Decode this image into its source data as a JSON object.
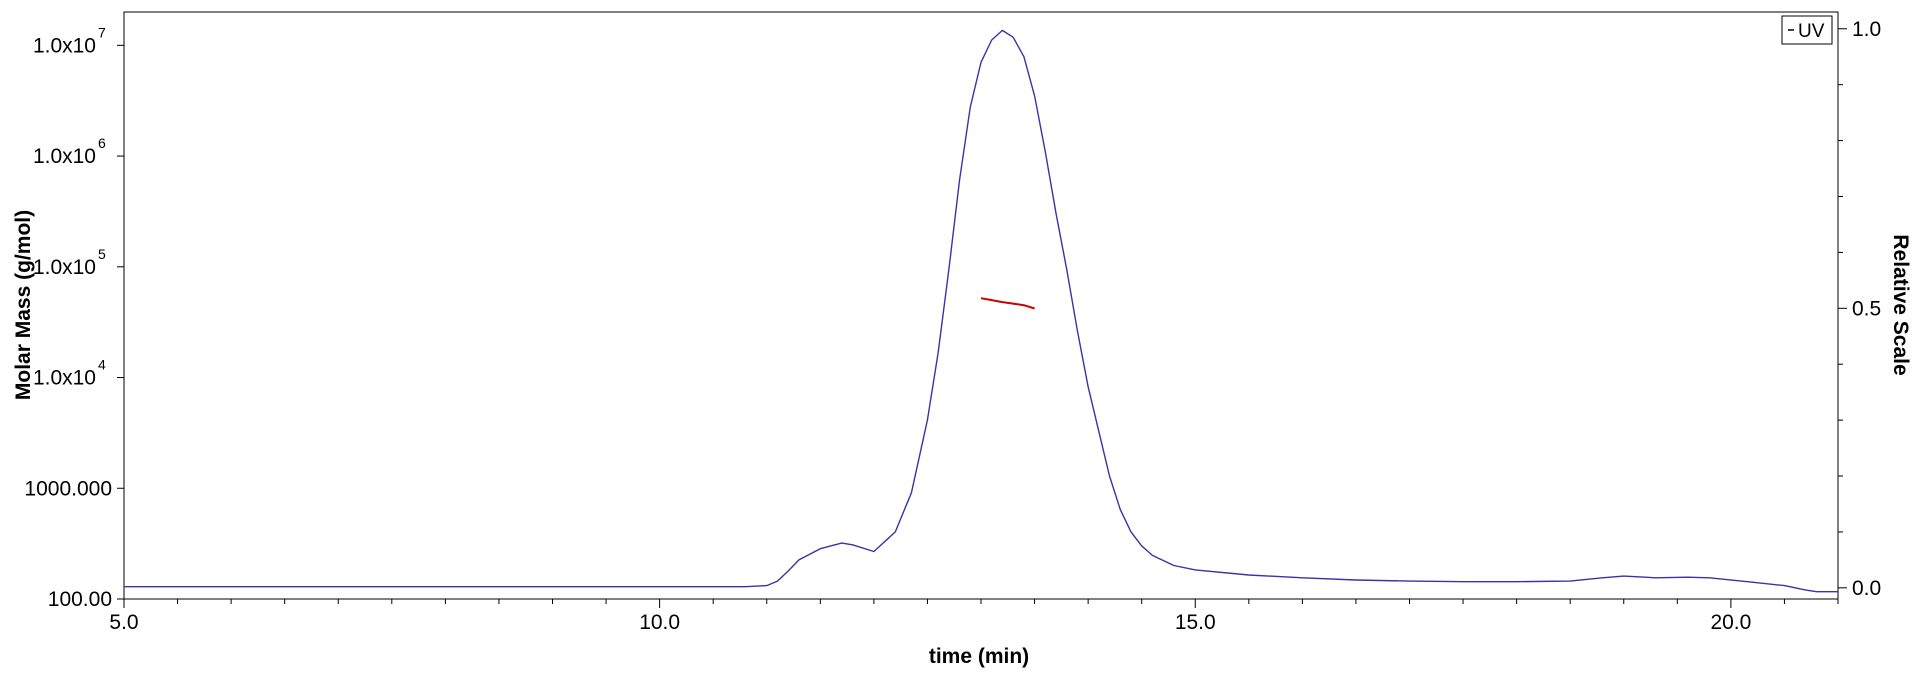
{
  "chart_data": {
    "type": "line",
    "title": "",
    "xlabel": "time (min)",
    "ylabel_left": "Molar Mass (g/mol)",
    "ylabel_right": "Relative Scale",
    "xlim": [
      5.0,
      21.0
    ],
    "ylim_left": [
      100,
      20000000
    ],
    "ylim_right": [
      -0.02,
      1.03
    ],
    "yscale_left": "log",
    "grid": false,
    "x_ticks": [
      "5.0",
      "10.0",
      "15.0",
      "20.0"
    ],
    "x_tick_values": [
      5.0,
      10.0,
      15.0,
      20.0
    ],
    "y_left_ticks": [
      {
        "value": 10000000,
        "base": "1.0x10",
        "exp": "7"
      },
      {
        "value": 1000000,
        "base": "1.0x10",
        "exp": "6"
      },
      {
        "value": 100000,
        "base": "1.0x10",
        "exp": "5"
      },
      {
        "value": 10000,
        "base": "1.0x10",
        "exp": "4"
      },
      {
        "value": 1000,
        "base": "1000.000",
        "exp": ""
      },
      {
        "value": 100,
        "base": "100.00",
        "exp": ""
      }
    ],
    "y_right_ticks": [
      "0.0",
      "0.5",
      "1.0"
    ],
    "y_right_tick_values": [
      0.0,
      0.5,
      1.0
    ],
    "legend": {
      "position": "top-right",
      "entries": [
        "UV"
      ]
    },
    "series": [
      {
        "name": "UV",
        "axis": "right",
        "color": "#3535a8",
        "x": [
          5.0,
          6.0,
          7.0,
          8.0,
          9.0,
          10.0,
          10.8,
          11.0,
          11.1,
          11.2,
          11.3,
          11.5,
          11.7,
          11.8,
          12.0,
          12.2,
          12.35,
          12.5,
          12.6,
          12.7,
          12.8,
          12.9,
          13.0,
          13.1,
          13.2,
          13.3,
          13.4,
          13.5,
          13.6,
          13.7,
          13.8,
          13.9,
          14.0,
          14.1,
          14.2,
          14.3,
          14.4,
          14.5,
          14.6,
          14.8,
          15.0,
          15.5,
          16.0,
          16.5,
          17.0,
          17.5,
          18.0,
          18.5,
          18.8,
          19.0,
          19.3,
          19.6,
          19.8,
          20.2,
          20.5,
          20.7,
          20.8,
          21.0
        ],
        "y": [
          0.002,
          0.002,
          0.002,
          0.002,
          0.002,
          0.002,
          0.002,
          0.004,
          0.012,
          0.03,
          0.05,
          0.07,
          0.08,
          0.077,
          0.065,
          0.1,
          0.17,
          0.3,
          0.42,
          0.57,
          0.73,
          0.86,
          0.94,
          0.98,
          0.997,
          0.985,
          0.95,
          0.88,
          0.78,
          0.67,
          0.57,
          0.46,
          0.36,
          0.28,
          0.2,
          0.14,
          0.1,
          0.075,
          0.058,
          0.04,
          0.032,
          0.023,
          0.018,
          0.014,
          0.012,
          0.011,
          0.011,
          0.012,
          0.018,
          0.021,
          0.018,
          0.019,
          0.018,
          0.01,
          0.004,
          -0.004,
          -0.007,
          -0.007
        ]
      },
      {
        "name": "",
        "axis": "left",
        "color": "#cc0000",
        "x": [
          13.0,
          13.1,
          13.2,
          13.3,
          13.4,
          13.5
        ],
        "y": [
          52000,
          50000,
          48000,
          46500,
          45000,
          42000
        ]
      }
    ]
  }
}
